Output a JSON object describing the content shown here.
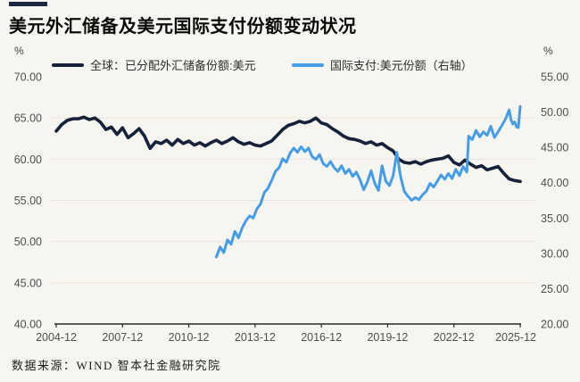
{
  "header": {
    "title": "美元外汇储备及美元国际支付份额变动状况",
    "accent_color": "#1b2740"
  },
  "legend": {
    "items": [
      {
        "label": "全球：已分配外汇储备份额:美元",
        "color": "#16213a"
      },
      {
        "label": "国际支付:美元份额（右轴）",
        "color": "#469de6"
      }
    ]
  },
  "footer": {
    "source": "数据来源：WIND 智本社金融研究院"
  },
  "colors": {
    "background": "#f7f5f0",
    "gridline": "#e8e5de",
    "axis_line": "#2b2b2b",
    "tick_text": "#4f4f4f",
    "reserves_line": "#16213a",
    "payments_line": "#469de6"
  },
  "chart_data": {
    "type": "line",
    "title": "美元外汇储备及美元国际支付份额变动状况",
    "x_axis": {
      "unit": "months since 2004-12",
      "tick_labels": [
        "2004-12",
        "2007-12",
        "2010-12",
        "2013-12",
        "2016-12",
        "2019-12",
        "2022-12",
        "2025-12"
      ],
      "tick_positions_months": [
        0,
        36,
        72,
        108,
        144,
        180,
        216,
        252
      ],
      "range_months": [
        0,
        252
      ]
    },
    "left_axis": {
      "unit": "%",
      "min": 40,
      "max": 70,
      "tick_labels": [
        "70.00",
        "65.00",
        "60.00",
        "55.00",
        "50.00",
        "45.00",
        "40.00"
      ],
      "tick_values": [
        70,
        65,
        60,
        55,
        50,
        45,
        40
      ],
      "gridline_values": [
        65,
        60,
        55,
        50,
        45
      ]
    },
    "right_axis": {
      "unit": "%",
      "min": 20,
      "max": 55,
      "tick_labels": [
        "55.00",
        "50.00",
        "45.00",
        "40.00",
        "35.00",
        "30.00",
        "25.00",
        "20.00"
      ],
      "tick_values": [
        55,
        50,
        45,
        40,
        35,
        30,
        25,
        20
      ]
    },
    "grid": "horizontal",
    "legend_position": "top",
    "series": [
      {
        "name": "全球：已分配外汇储备份额:美元",
        "axis": "left",
        "color": "#16213a",
        "x_start_month": 0,
        "x_step_months": 3,
        "y": [
          63.4,
          64.2,
          64.7,
          64.9,
          64.9,
          65.1,
          64.8,
          65.0,
          64.5,
          63.6,
          63.9,
          63.0,
          63.8,
          62.6,
          63.1,
          63.7,
          62.8,
          61.3,
          62.1,
          61.9,
          62.3,
          61.7,
          62.4,
          61.9,
          62.2,
          61.7,
          62.0,
          61.6,
          62.0,
          62.3,
          61.9,
          62.2,
          62.6,
          62.1,
          61.8,
          62.0,
          61.7,
          61.6,
          61.9,
          62.2,
          62.9,
          63.6,
          64.1,
          64.3,
          64.6,
          64.4,
          64.6,
          65.0,
          64.4,
          64.2,
          63.7,
          63.3,
          62.8,
          62.5,
          62.4,
          62.2,
          61.9,
          62.1,
          61.7,
          61.9,
          61.4,
          61.0,
          60.0,
          59.6,
          59.5,
          59.7,
          59.4,
          59.7,
          59.9,
          60.0,
          60.1,
          60.4,
          59.6,
          59.3,
          59.9,
          59.4,
          59.0,
          59.2,
          58.7,
          58.9,
          59.1,
          58.3,
          57.6,
          57.4,
          57.3
        ]
      },
      {
        "name": "国际支付:美元份额（右轴）",
        "axis": "right",
        "color": "#469de6",
        "x": [
          87,
          89,
          91,
          93,
          95,
          97,
          99,
          101,
          103,
          105,
          107,
          109,
          111,
          113,
          115,
          117,
          119,
          121,
          123,
          125,
          127,
          129,
          131,
          133,
          135,
          137,
          139,
          141,
          143,
          145,
          147,
          149,
          151,
          153,
          155,
          157,
          159,
          161,
          163,
          165,
          167,
          169,
          171,
          173,
          175,
          177,
          179,
          181,
          183,
          185,
          187,
          189,
          191,
          193,
          195,
          197,
          199,
          201,
          203,
          205,
          207,
          209,
          211,
          213,
          215,
          217,
          219,
          221,
          223,
          224,
          226,
          228,
          230,
          232,
          234,
          236,
          238,
          240,
          242,
          244,
          246,
          247,
          248,
          249,
          250,
          251,
          252
        ],
        "y": [
          29.5,
          30.9,
          30.1,
          31.9,
          31.3,
          33.1,
          32.2,
          33.6,
          34.6,
          35.3,
          35.0,
          36.3,
          37.0,
          38.6,
          39.2,
          40.3,
          41.6,
          42.1,
          43.4,
          42.9,
          44.2,
          44.9,
          44.3,
          45.1,
          44.4,
          44.9,
          43.7,
          43.3,
          44.0,
          42.7,
          42.3,
          43.0,
          42.1,
          41.6,
          42.4,
          41.3,
          41.9,
          40.9,
          41.5,
          40.4,
          39.0,
          40.1,
          41.7,
          39.9,
          38.9,
          42.4,
          40.2,
          39.6,
          41.0,
          44.3,
          40.9,
          38.8,
          38.1,
          37.5,
          37.9,
          37.6,
          38.3,
          38.8,
          39.9,
          39.4,
          40.2,
          41.1,
          40.5,
          41.3,
          40.6,
          41.9,
          41.0,
          42.3,
          41.5,
          46.6,
          46.1,
          47.4,
          46.5,
          47.2,
          46.7,
          48.0,
          46.4,
          47.2,
          48.1,
          49.0,
          50.3,
          48.9,
          48.3,
          48.6,
          47.9,
          47.8,
          50.8
        ]
      }
    ]
  }
}
